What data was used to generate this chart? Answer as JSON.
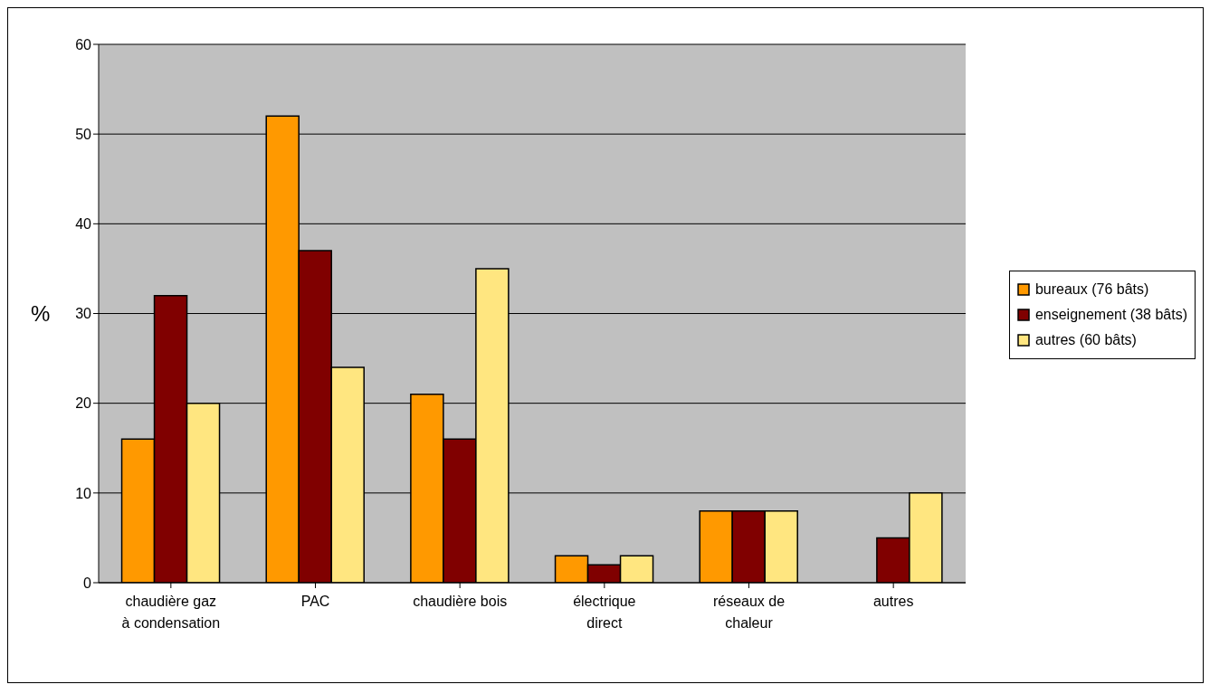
{
  "chart_data": {
    "type": "bar",
    "ylabel": "%",
    "categories": [
      "chaudière gaz à condensation",
      "PAC",
      "chaudière bois",
      "électrique direct",
      "réseaux de chaleur",
      "autres"
    ],
    "series": [
      {
        "name": "bureaux (76 bâts)",
        "color": "#ff9900",
        "values": [
          16,
          52,
          21,
          3,
          8,
          0
        ]
      },
      {
        "name": "enseignement (38 bâts)",
        "color": "#800000",
        "values": [
          32,
          37,
          16,
          2,
          8,
          5
        ]
      },
      {
        "name": "autres (60 bâts)",
        "color": "#ffe680",
        "values": [
          20,
          24,
          35,
          3,
          8,
          10
        ]
      }
    ],
    "ylim": [
      0,
      60
    ],
    "yticks": [
      0,
      10,
      20,
      30,
      40,
      50,
      60
    ],
    "grid": "y",
    "legend": "right"
  }
}
